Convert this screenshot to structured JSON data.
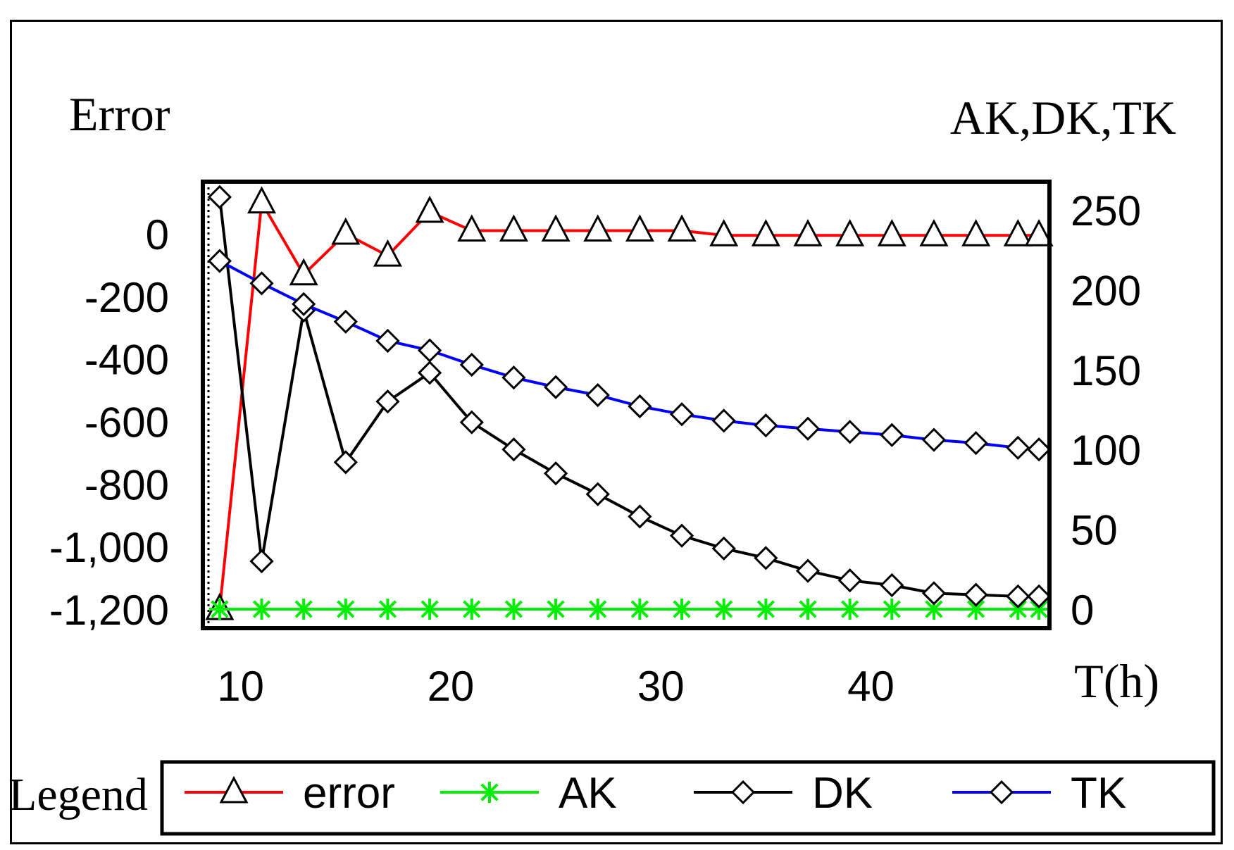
{
  "chart_data": {
    "type": "line",
    "y_left_label": "Error",
    "y_right_label": "AK,DK,TK",
    "x_label": "T(h)",
    "x_range": [
      8.2,
      48.5
    ],
    "x_ticks": [
      10,
      20,
      30,
      40
    ],
    "y_left_range": [
      -1200,
      0
    ],
    "y_left_ticks": [
      "0",
      "-200",
      "-400",
      "-600",
      "-800",
      "-1,000",
      "-1,200"
    ],
    "y_left_tick_values": [
      0,
      -200,
      -400,
      -600,
      -800,
      -1000,
      -1200
    ],
    "y_right_range": [
      0,
      250
    ],
    "y_right_ticks": [
      "250",
      "200",
      "150",
      "100",
      "50",
      "0"
    ],
    "y_right_tick_values": [
      250,
      200,
      150,
      100,
      50,
      0
    ],
    "legend_title": "Legend",
    "legend_position": "bottom",
    "x": [
      9,
      11,
      13,
      15,
      17,
      19,
      21,
      23,
      25,
      27,
      29,
      31,
      33,
      35,
      37,
      39,
      41,
      43,
      45,
      47,
      48
    ],
    "series": [
      {
        "name": "error",
        "axis": "left",
        "color": "#ff0000",
        "marker": "triangle",
        "values": [
          -1200,
          100,
          -130,
          0,
          -70,
          70,
          10,
          10,
          10,
          10,
          10,
          10,
          -5,
          -5,
          -5,
          -5,
          -5,
          -5,
          -5,
          -5,
          -5
        ]
      },
      {
        "name": "AK",
        "axis": "right",
        "color": "#00ee00",
        "marker": "star",
        "values": [
          0,
          0,
          0,
          0,
          0,
          0,
          0,
          0,
          0,
          0,
          0,
          0,
          0,
          0,
          0,
          0,
          0,
          0,
          0,
          0,
          0
        ]
      },
      {
        "name": "DK",
        "axis": "right",
        "color": "#000000",
        "marker": "diamond",
        "values": [
          258,
          30,
          187,
          92,
          130,
          148,
          117,
          100,
          85,
          72,
          58,
          46,
          38,
          32,
          24,
          18,
          15,
          10,
          9,
          8,
          8
        ]
      },
      {
        "name": "TK",
        "axis": "right",
        "color": "#0000ff",
        "marker": "diamond",
        "values": [
          218,
          204,
          191,
          180,
          168,
          162,
          153,
          145,
          139,
          134,
          127,
          122,
          118,
          115,
          113,
          111,
          109,
          106,
          104,
          101,
          100
        ]
      }
    ]
  }
}
